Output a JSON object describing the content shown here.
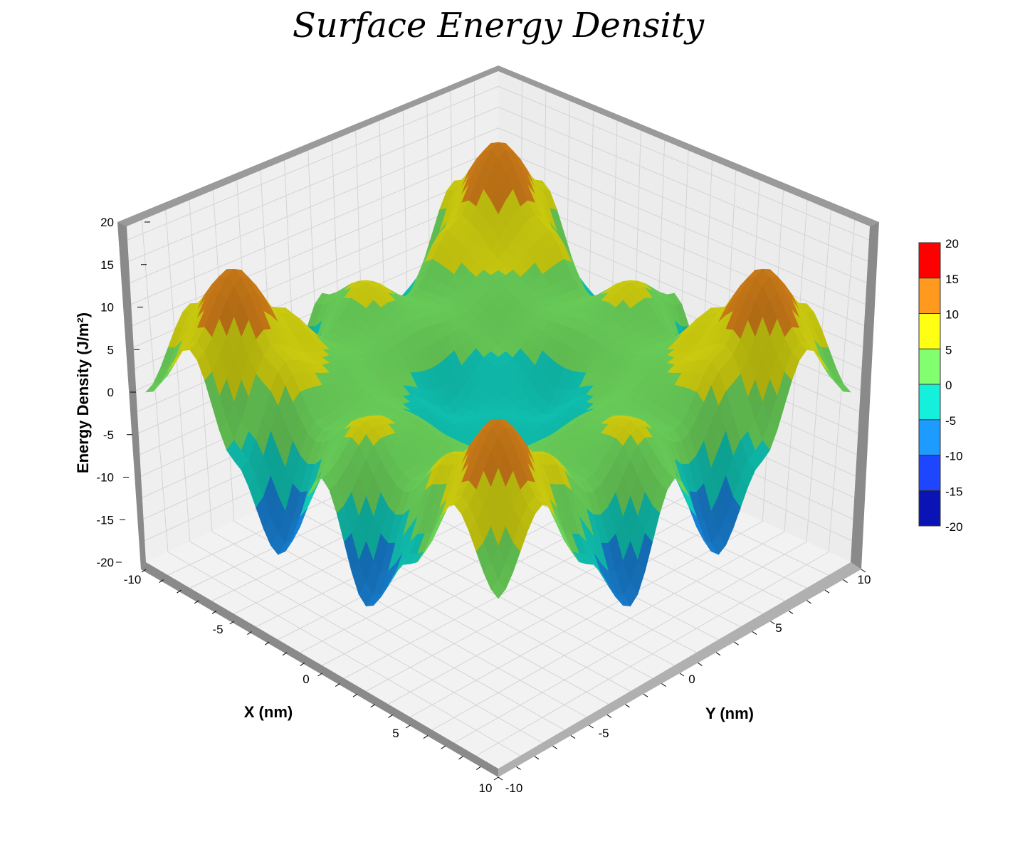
{
  "chart_data": {
    "type": "surface",
    "title": "Surface Energy Density",
    "xlabel": "X (nm)",
    "ylabel": "Y (nm)",
    "zlabel": "Energy Density (J/m²)",
    "xlim": [
      -10,
      10
    ],
    "ylim": [
      -10,
      10
    ],
    "zlim": [
      -20,
      20
    ],
    "x_ticks": [
      -10,
      -5,
      0,
      5,
      10
    ],
    "y_ticks": [
      -10,
      -5,
      0,
      5,
      10
    ],
    "z_ticks": [
      20,
      15,
      10,
      5,
      0,
      -5,
      -10,
      -15,
      -20
    ],
    "x_tick_labels": [
      "-10",
      "-5",
      "0",
      "5",
      "10"
    ],
    "y_tick_labels": [
      "-10",
      "-5",
      "0",
      "5",
      "10"
    ],
    "z_tick_labels": [
      "20",
      "15",
      "10",
      "5",
      "0",
      "-5",
      "-10",
      "-15",
      "-20"
    ],
    "grid": true,
    "legend": "right",
    "colorbar_levels": [
      20,
      15,
      10,
      5,
      0,
      -5,
      -10,
      -15,
      -20
    ],
    "colorbar_labels": [
      "20",
      "15",
      "10",
      "5",
      "0",
      "-5",
      "-10",
      "-15",
      "-20"
    ],
    "colorbar_colors": [
      "#ff0000",
      "#ff9a1e",
      "#ffff14",
      "#82ff6e",
      "#14f0dc",
      "#1e9bff",
      "#1e46ff",
      "#0a14b4"
    ],
    "surface_function": "20*cos(x*pi/8)*cos(y*pi/8) approximately, with peaks (~20) near corners and center",
    "grid_x": [
      -10,
      -7.5,
      -5,
      -2.5,
      0,
      2.5,
      5,
      7.5,
      10
    ],
    "grid_y": [
      -10,
      -7.5,
      -5,
      -2.5,
      0,
      2.5,
      5,
      7.5,
      10
    ],
    "z_values": [
      [
        0,
        8,
        -2,
        -10,
        2,
        -10,
        -2,
        8,
        0
      ],
      [
        8,
        15,
        8,
        2,
        6,
        2,
        8,
        15,
        8
      ],
      [
        -2,
        8,
        5,
        3,
        4,
        3,
        5,
        8,
        -2
      ],
      [
        -10,
        2,
        3,
        0,
        -4,
        0,
        3,
        2,
        -10
      ],
      [
        2,
        6,
        4,
        -4,
        -2,
        -4,
        4,
        6,
        2
      ],
      [
        -10,
        2,
        3,
        0,
        -4,
        0,
        3,
        2,
        -10
      ],
      [
        -2,
        8,
        5,
        3,
        4,
        3,
        5,
        8,
        -2
      ],
      [
        8,
        15,
        8,
        2,
        6,
        2,
        8,
        15,
        8
      ],
      [
        0,
        8,
        -2,
        -10,
        2,
        -10,
        -2,
        8,
        0
      ]
    ]
  },
  "colors": {
    "wall_fill": "#efefef",
    "floor_fill": "#f2f2f2",
    "grid_line": "#cfcfcf",
    "frame_dark": "#8a8a8a",
    "frame_light": "#b5b5b5"
  }
}
